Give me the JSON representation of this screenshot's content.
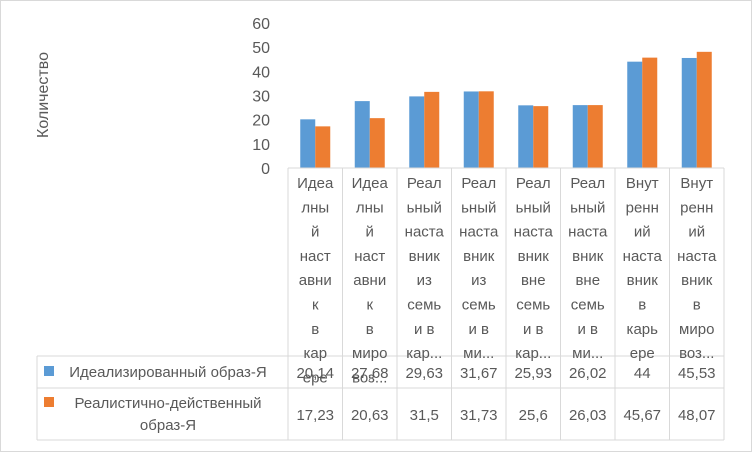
{
  "chart_data": {
    "type": "bar",
    "ylabel": "Количество",
    "ylim": [
      0,
      60
    ],
    "yticks": [
      0,
      10,
      20,
      30,
      40,
      50,
      60
    ],
    "grid": false,
    "legend": "bottom-table",
    "categories": [
      [
        "Идеа",
        "лны",
        "й",
        "наст",
        "авни",
        "к",
        "в",
        "кар",
        "ере"
      ],
      [
        "Идеа",
        "лны",
        "й",
        "наст",
        "авни",
        "к",
        "в",
        "миро",
        "воз..."
      ],
      [
        "Реал",
        "ьный",
        "наста",
        "вник",
        "из",
        "семь",
        "и в",
        "кар..."
      ],
      [
        "Реал",
        "ьный",
        "наста",
        "вник",
        "из",
        "семь",
        "и в",
        "ми..."
      ],
      [
        "Реал",
        "ьный",
        "наста",
        "вник",
        "вне",
        "семь",
        "и в",
        "кар..."
      ],
      [
        "Реал",
        "ьный",
        "наста",
        "вник",
        "вне",
        "семь",
        "и в",
        "ми..."
      ],
      [
        "Внут",
        "ренн",
        "ий",
        "наста",
        "вник",
        "в",
        "карь",
        "ере"
      ],
      [
        "Внут",
        "ренн",
        "ий",
        "наста",
        "вник",
        "в",
        "миро",
        "воз..."
      ]
    ],
    "series": [
      {
        "name": "Идеализированный образ-Я",
        "name_lines": [
          "Идеализированный образ-Я"
        ],
        "color": "#5B9BD5",
        "values": [
          20.14,
          27.68,
          29.63,
          31.67,
          25.93,
          26.02,
          44,
          45.53
        ],
        "labels": [
          "20,14",
          "27,68",
          "29,63",
          "31,67",
          "25,93",
          "26,02",
          "44",
          "45,53"
        ]
      },
      {
        "name": "Реалистично-действенный образ-Я",
        "name_lines": [
          "Реалистично-действенный",
          "образ-Я"
        ],
        "color": "#ED7D31",
        "values": [
          17.23,
          20.63,
          31.5,
          31.73,
          25.6,
          26.03,
          45.67,
          48.07
        ],
        "labels": [
          "17,23",
          "20,63",
          "31,5",
          "31,73",
          "25,6",
          "26,03",
          "45,67",
          "48,07"
        ]
      }
    ]
  }
}
